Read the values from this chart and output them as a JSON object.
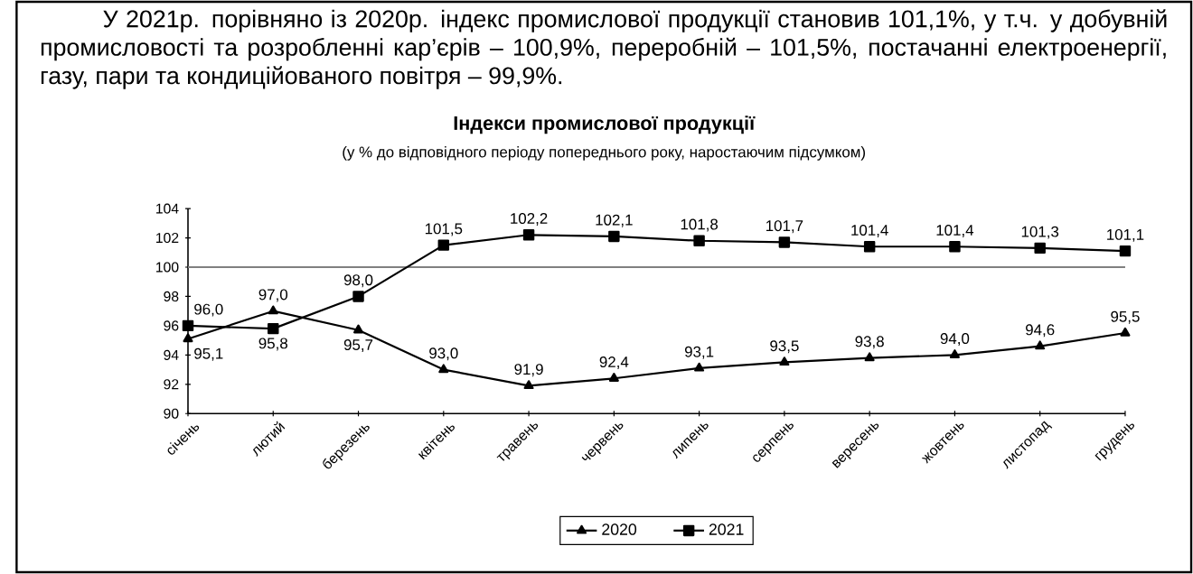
{
  "chart_data": {
    "type": "line",
    "title": "Індекси промислової продукції",
    "subtitle": "(у % до відповідного періоду попереднього року, наростаючим підсумком)",
    "annotations": [
      "У 2021р. порівняно із 2020р. індекс промислової продукції становив 101,1%, у т.ч. у добувній промисловості та розробленні кар’єрів – 100,9%, переробній – 101,5%, постачанні електроенергії, газу, пари та кондиційованого повітря – 99,9%."
    ],
    "categories": [
      "січень",
      "лютий",
      "березень",
      "квітень",
      "травень",
      "червень",
      "липень",
      "серпень",
      "вересень",
      "жовтень",
      "листопад",
      "грудень"
    ],
    "series": [
      {
        "name": "2020",
        "color": "#000000",
        "marker": "triangle",
        "values": [
          95.1,
          97.0,
          95.7,
          93.0,
          91.9,
          92.4,
          93.1,
          93.5,
          93.8,
          94.0,
          94.6,
          95.5
        ],
        "value_labels": [
          "95,1",
          "97,0",
          "95,7",
          "93,0",
          "91,9",
          "92,4",
          "93,1",
          "93,5",
          "93,8",
          "94,0",
          "94,6",
          "95,5"
        ]
      },
      {
        "name": "2021",
        "color": "#000000",
        "marker": "square",
        "values": [
          96.0,
          95.8,
          98.0,
          101.5,
          102.2,
          102.1,
          101.8,
          101.7,
          101.4,
          101.4,
          101.3,
          101.1
        ],
        "value_labels": [
          "96,0",
          "95,8",
          "98,0",
          "101,5",
          "102,2",
          "102,1",
          "101,8",
          "101,7",
          "101,4",
          "101,4",
          "101,3",
          "101,1"
        ]
      }
    ],
    "ylim": [
      90,
      104
    ],
    "yticks": [
      90,
      92,
      94,
      96,
      98,
      100,
      102,
      104
    ],
    "ref_lines": [
      {
        "axis": "y",
        "value": 100,
        "color": "#808080"
      }
    ],
    "legend": "bottom",
    "grid": false,
    "line_style": "solid"
  }
}
